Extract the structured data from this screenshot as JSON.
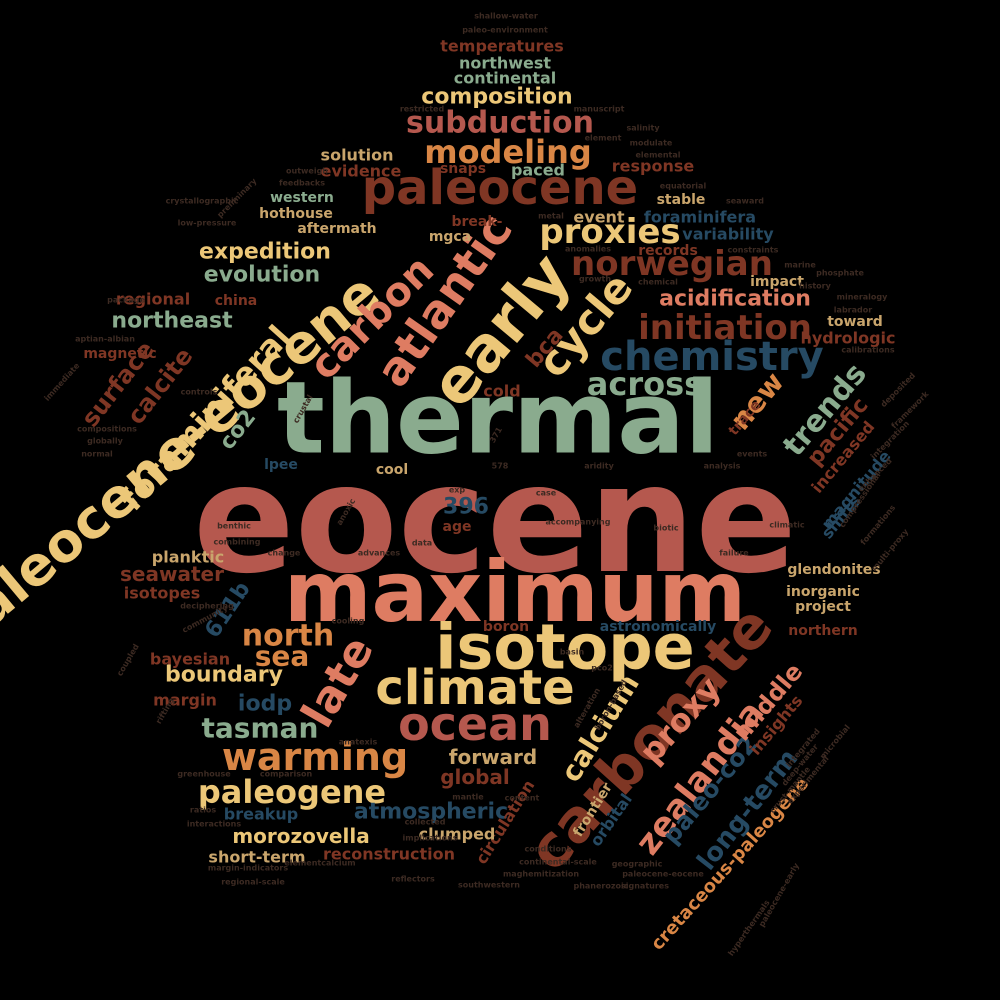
{
  "cloud": {
    "palette": {
      "red": "#b5584e",
      "salmon": "#de7c62",
      "sage": "#8aab8e",
      "gold": "#ecc778",
      "orange": "#d98645",
      "rust": "#7f3624",
      "navy": "#264a63",
      "dim": "#3c2a22",
      "tan": "#c9a56c"
    },
    "words": [
      {
        "text": "eocene",
        "color": "red"
      },
      {
        "text": "thermal",
        "color": "sage"
      },
      {
        "text": "maximum",
        "color": "salmon"
      },
      {
        "text": "paleocene-eocene",
        "color": "gold"
      },
      {
        "text": "isotope",
        "color": "gold"
      },
      {
        "text": "carbonate",
        "color": "rust"
      },
      {
        "text": "early",
        "color": "gold"
      },
      {
        "text": "paleocene",
        "color": "rust"
      },
      {
        "text": "climate",
        "color": "gold"
      },
      {
        "text": "ocean",
        "color": "red"
      },
      {
        "text": "late",
        "color": "salmon"
      },
      {
        "text": "cycle",
        "color": "gold"
      },
      {
        "text": "atlantic",
        "color": "salmon"
      },
      {
        "text": "carbon",
        "color": "salmon"
      },
      {
        "text": "chemistry",
        "color": "navy"
      },
      {
        "text": "foraminiferal",
        "color": "gold"
      },
      {
        "text": "warming",
        "color": "orange"
      },
      {
        "text": "initiation",
        "color": "rust"
      },
      {
        "text": "norwegian",
        "color": "rust"
      },
      {
        "text": "proxies",
        "color": "gold"
      },
      {
        "text": "modeling",
        "color": "orange"
      },
      {
        "text": "subduction",
        "color": "red"
      },
      {
        "text": "across",
        "color": "sage"
      },
      {
        "text": "paleogene",
        "color": "gold"
      },
      {
        "text": "zealandia",
        "color": "salmon"
      },
      {
        "text": "proxy",
        "color": "salmon"
      },
      {
        "text": "trends",
        "color": "sage"
      },
      {
        "text": "tasman",
        "color": "sage"
      },
      {
        "text": "calcium",
        "color": "gold"
      },
      {
        "text": "north",
        "color": "orange"
      },
      {
        "text": "sea",
        "color": "orange"
      },
      {
        "text": "composition",
        "color": "gold"
      },
      {
        "text": "expedition",
        "color": "gold"
      },
      {
        "text": "evolution",
        "color": "sage"
      },
      {
        "text": "acidification",
        "color": "salmon"
      },
      {
        "text": "new",
        "color": "orange"
      },
      {
        "text": "long-term",
        "color": "navy"
      },
      {
        "text": "paleo-co2",
        "color": "navy"
      },
      {
        "text": "middle",
        "color": "salmon"
      },
      {
        "text": "surface",
        "color": "rust"
      },
      {
        "text": "calcite",
        "color": "rust"
      },
      {
        "text": "northeast",
        "color": "sage"
      },
      {
        "text": "pacific",
        "color": "rust"
      },
      {
        "text": "boundary",
        "color": "gold"
      },
      {
        "text": "atmospheric",
        "color": "navy"
      },
      {
        "text": "morozovella",
        "color": "gold"
      },
      {
        "text": "global",
        "color": "rust"
      },
      {
        "text": "forward",
        "color": "tan"
      },
      {
        "text": "iodp",
        "color": "navy"
      },
      {
        "text": "bca",
        "color": "rust"
      },
      {
        "text": "co2",
        "color": "sage"
      },
      {
        "text": "396",
        "color": "navy"
      },
      {
        "text": "611b",
        "color": "navy"
      },
      {
        "text": "seawater",
        "color": "rust"
      },
      {
        "text": "isotopes",
        "color": "rust"
      },
      {
        "text": "planktic",
        "color": "tan"
      },
      {
        "text": "bayesian",
        "color": "rust"
      },
      {
        "text": "margin",
        "color": "rust"
      },
      {
        "text": "cretaceous-paleogene",
        "color": "orange"
      },
      {
        "text": "circulation",
        "color": "rust"
      },
      {
        "text": "orbital",
        "color": "navy"
      },
      {
        "text": "frontier",
        "color": "tan"
      },
      {
        "text": "insights",
        "color": "rust"
      },
      {
        "text": "clumped",
        "color": "tan"
      },
      {
        "text": "reconstruction",
        "color": "rust"
      },
      {
        "text": "short-term",
        "color": "tan"
      },
      {
        "text": "breakup",
        "color": "navy"
      },
      {
        "text": "increased",
        "color": "rust"
      },
      {
        "text": "magnitude",
        "color": "navy"
      },
      {
        "text": "shifts",
        "color": "navy"
      },
      {
        "text": "trace",
        "color": "rust"
      },
      {
        "text": "cold",
        "color": "rust"
      },
      {
        "text": "hydrologic",
        "color": "rust"
      },
      {
        "text": "toward",
        "color": "tan"
      },
      {
        "text": "impact",
        "color": "tan"
      },
      {
        "text": "records",
        "color": "rust"
      },
      {
        "text": "variability",
        "color": "navy"
      },
      {
        "text": "foraminifera",
        "color": "navy"
      },
      {
        "text": "stable",
        "color": "tan"
      },
      {
        "text": "event",
        "color": "tan"
      },
      {
        "text": "response",
        "color": "rust"
      },
      {
        "text": "paced",
        "color": "sage"
      },
      {
        "text": "snaps",
        "color": "rust"
      },
      {
        "text": "evidence",
        "color": "rust"
      },
      {
        "text": "solution",
        "color": "tan"
      },
      {
        "text": "western",
        "color": "sage"
      },
      {
        "text": "hothouse",
        "color": "tan"
      },
      {
        "text": "aftermath",
        "color": "tan"
      },
      {
        "text": "break-",
        "color": "rust"
      },
      {
        "text": "mgca",
        "color": "tan"
      },
      {
        "text": "temperatures",
        "color": "rust"
      },
      {
        "text": "northwest",
        "color": "sage"
      },
      {
        "text": "continental",
        "color": "sage"
      },
      {
        "text": "regional",
        "color": "rust"
      },
      {
        "text": "china",
        "color": "rust"
      },
      {
        "text": "magnetic",
        "color": "rust"
      },
      {
        "text": "lpee",
        "color": "navy"
      },
      {
        "text": "cool",
        "color": "tan"
      },
      {
        "text": "age",
        "color": "rust"
      },
      {
        "text": "glendonites",
        "color": "tan"
      },
      {
        "text": "inorganic",
        "color": "tan"
      },
      {
        "text": "project",
        "color": "tan"
      },
      {
        "text": "northern",
        "color": "rust"
      },
      {
        "text": "astronomically",
        "color": "navy"
      },
      {
        "text": "boron",
        "color": "rust"
      },
      {
        "text": "anoxic",
        "color": "dim"
      },
      {
        "text": "benthic",
        "color": "dim"
      },
      {
        "text": "combining",
        "color": "dim"
      },
      {
        "text": "deciphering",
        "color": "dim"
      },
      {
        "text": "community",
        "color": "dim"
      },
      {
        "text": "cooling",
        "color": "dim"
      },
      {
        "text": "accompanying",
        "color": "dim"
      },
      {
        "text": "climatic",
        "color": "dim"
      },
      {
        "text": "aridity",
        "color": "dim"
      },
      {
        "text": "analysis",
        "color": "dim"
      },
      {
        "text": "events",
        "color": "dim"
      },
      {
        "text": "biotic",
        "color": "dim"
      },
      {
        "text": "failure",
        "color": "dim"
      },
      {
        "text": "advances",
        "color": "dim"
      },
      {
        "text": "change",
        "color": "dim"
      },
      {
        "text": "data",
        "color": "dim"
      },
      {
        "text": "case",
        "color": "dim"
      },
      {
        "text": "exp",
        "color": "dim"
      },
      {
        "text": "578",
        "color": "dim"
      },
      {
        "text": "371",
        "color": "dim"
      },
      {
        "text": "crustal",
        "color": "dim"
      },
      {
        "text": "controls",
        "color": "dim"
      },
      {
        "text": "globally",
        "color": "dim"
      },
      {
        "text": "normal",
        "color": "dim"
      },
      {
        "text": "compositions",
        "color": "dim"
      },
      {
        "text": "immediate",
        "color": "dim"
      },
      {
        "text": "aptian-albian",
        "color": "dim"
      },
      {
        "text": "package",
        "color": "dim"
      },
      {
        "text": "crystallographic",
        "color": "dim"
      },
      {
        "text": "low-pressure",
        "color": "dim"
      },
      {
        "text": "feedbacks",
        "color": "dim"
      },
      {
        "text": "outweigh",
        "color": "dim"
      },
      {
        "text": "preliminary",
        "color": "dim"
      },
      {
        "text": "restricted",
        "color": "dim"
      },
      {
        "text": "manuscript",
        "color": "dim"
      },
      {
        "text": "salinity",
        "color": "dim"
      },
      {
        "text": "element",
        "color": "dim"
      },
      {
        "text": "elemental",
        "color": "dim"
      },
      {
        "text": "modulate",
        "color": "dim"
      },
      {
        "text": "equatorial",
        "color": "dim"
      },
      {
        "text": "paleo-environment",
        "color": "dim"
      },
      {
        "text": "shallow-water",
        "color": "dim"
      },
      {
        "text": "metal",
        "color": "dim"
      },
      {
        "text": "seaward",
        "color": "dim"
      },
      {
        "text": "constraints",
        "color": "dim"
      },
      {
        "text": "anomalies",
        "color": "dim"
      },
      {
        "text": "growth",
        "color": "dim"
      },
      {
        "text": "chemical",
        "color": "dim"
      },
      {
        "text": "marine",
        "color": "dim"
      },
      {
        "text": "phosphate",
        "color": "dim"
      },
      {
        "text": "history",
        "color": "dim"
      },
      {
        "text": "mineralogy",
        "color": "dim"
      },
      {
        "text": "labrador",
        "color": "dim"
      },
      {
        "text": "calibrations",
        "color": "dim"
      },
      {
        "text": "deposited",
        "color": "dim"
      },
      {
        "text": "framework",
        "color": "dim"
      },
      {
        "text": "integration",
        "color": "dim"
      },
      {
        "text": "enhanced",
        "color": "dim"
      },
      {
        "text": "compressional",
        "color": "dim"
      },
      {
        "text": "formations",
        "color": "dim"
      },
      {
        "text": "multi-proxy",
        "color": "dim"
      },
      {
        "text": "integrated",
        "color": "dim"
      },
      {
        "text": "deep-water",
        "color": "dim"
      },
      {
        "text": "microbial",
        "color": "dim"
      },
      {
        "text": "experimental",
        "color": "dim"
      },
      {
        "text": "crust-mantle",
        "color": "dim"
      },
      {
        "text": "boron-based",
        "color": "dim"
      },
      {
        "text": "alteration",
        "color": "dim"
      },
      {
        "text": "pco2",
        "color": "dim"
      },
      {
        "text": "basin",
        "color": "dim"
      },
      {
        "text": "content",
        "color": "dim"
      },
      {
        "text": "mantle",
        "color": "dim"
      },
      {
        "text": "collected",
        "color": "dim"
      },
      {
        "text": "implications",
        "color": "dim"
      },
      {
        "text": "elementcalcium",
        "color": "dim"
      },
      {
        "text": "conditions",
        "color": "dim"
      },
      {
        "text": "continental-scale",
        "color": "dim"
      },
      {
        "text": "maghemitization",
        "color": "dim"
      },
      {
        "text": "reflectors",
        "color": "dim"
      },
      {
        "text": "paleocene-eocene",
        "color": "dim"
      },
      {
        "text": "phanerozoic",
        "color": "dim"
      },
      {
        "text": "signatures",
        "color": "dim"
      },
      {
        "text": "southwestern",
        "color": "dim"
      },
      {
        "text": "geographic",
        "color": "dim"
      },
      {
        "text": "comparison",
        "color": "dim"
      },
      {
        "text": "greenhouse",
        "color": "dim"
      },
      {
        "text": "ratios",
        "color": "dim"
      },
      {
        "text": "interactions",
        "color": "dim"
      },
      {
        "text": "margin-indicators",
        "color": "dim"
      },
      {
        "text": "regional-scale",
        "color": "dim"
      },
      {
        "text": "anatexis",
        "color": "dim"
      },
      {
        "text": "rifting",
        "color": "dim"
      },
      {
        "text": "coupled",
        "color": "dim"
      },
      {
        "text": "paleocene-early",
        "color": "dim"
      },
      {
        "text": "hyperthermals",
        "color": "dim"
      }
    ]
  }
}
